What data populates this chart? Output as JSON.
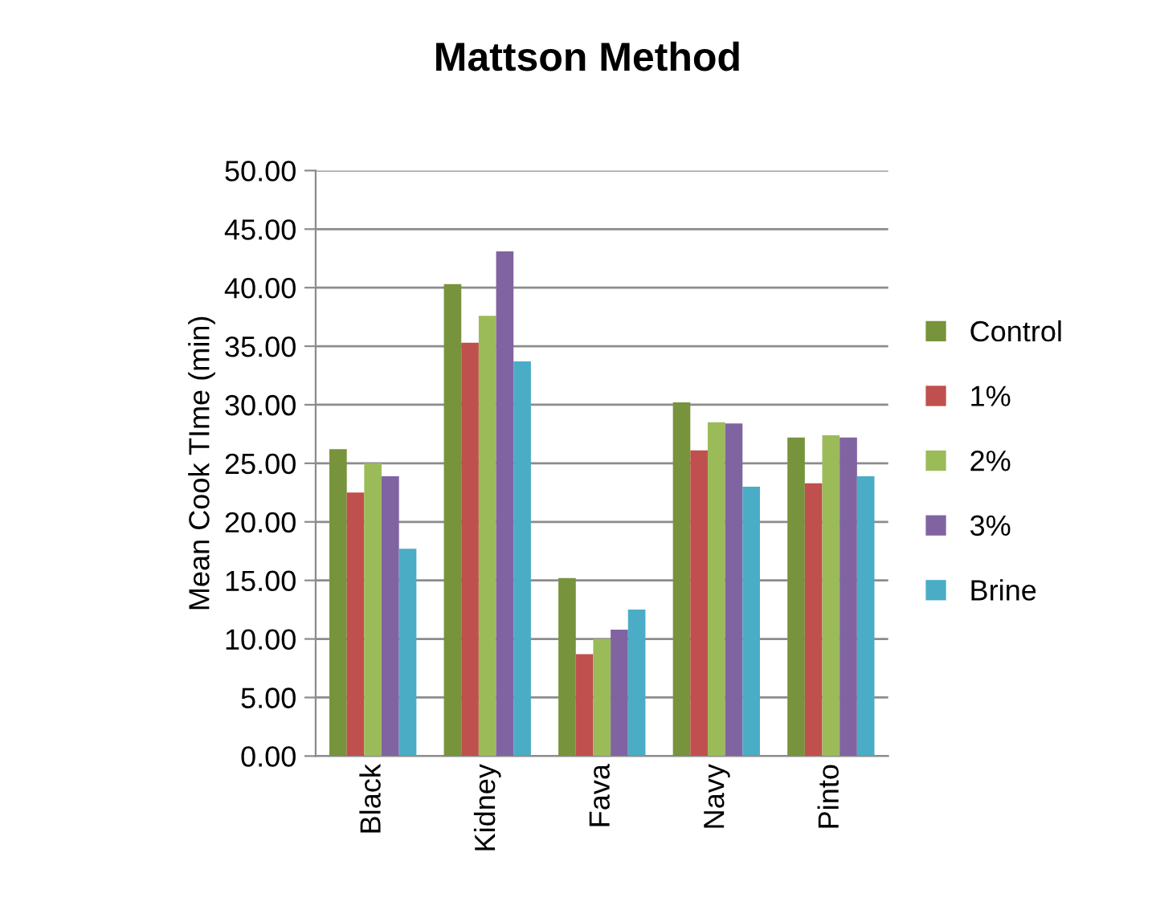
{
  "chart_data": {
    "type": "bar",
    "title": "Mattson Method",
    "ylabel": "Mean Cook TIme (min)",
    "categories": [
      "Black",
      "Kidney",
      "Fava",
      "Navy",
      "Pinto"
    ],
    "series": [
      {
        "name": "Control",
        "color": "#77933c",
        "values": [
          26.2,
          40.3,
          15.2,
          30.2,
          27.2
        ]
      },
      {
        "name": "1%",
        "color": "#c0504d",
        "values": [
          22.5,
          35.3,
          8.7,
          26.1,
          23.3
        ]
      },
      {
        "name": "2%",
        "color": "#9bbb59",
        "values": [
          25.0,
          37.6,
          10.0,
          28.5,
          27.4
        ]
      },
      {
        "name": "3%",
        "color": "#8064a2",
        "values": [
          23.9,
          43.1,
          10.8,
          28.4,
          27.2
        ]
      },
      {
        "name": "Brine",
        "color": "#4bacc6",
        "values": [
          17.7,
          33.7,
          12.5,
          23.0,
          23.9
        ]
      }
    ],
    "ylim": [
      0,
      50
    ],
    "yticks": [
      {
        "value": 0,
        "label": "0.00"
      },
      {
        "value": 5,
        "label": "5.00"
      },
      {
        "value": 10,
        "label": "10.00"
      },
      {
        "value": 15,
        "label": "15.00"
      },
      {
        "value": 20,
        "label": "20.00"
      },
      {
        "value": 25,
        "label": "25.00"
      },
      {
        "value": 30,
        "label": "30.00"
      },
      {
        "value": 35,
        "label": "35.00"
      },
      {
        "value": 40,
        "label": "40.00"
      },
      {
        "value": 45,
        "label": "45.00"
      },
      {
        "value": 50,
        "label": "50.00"
      }
    ],
    "grid": "y",
    "legend": "right"
  }
}
